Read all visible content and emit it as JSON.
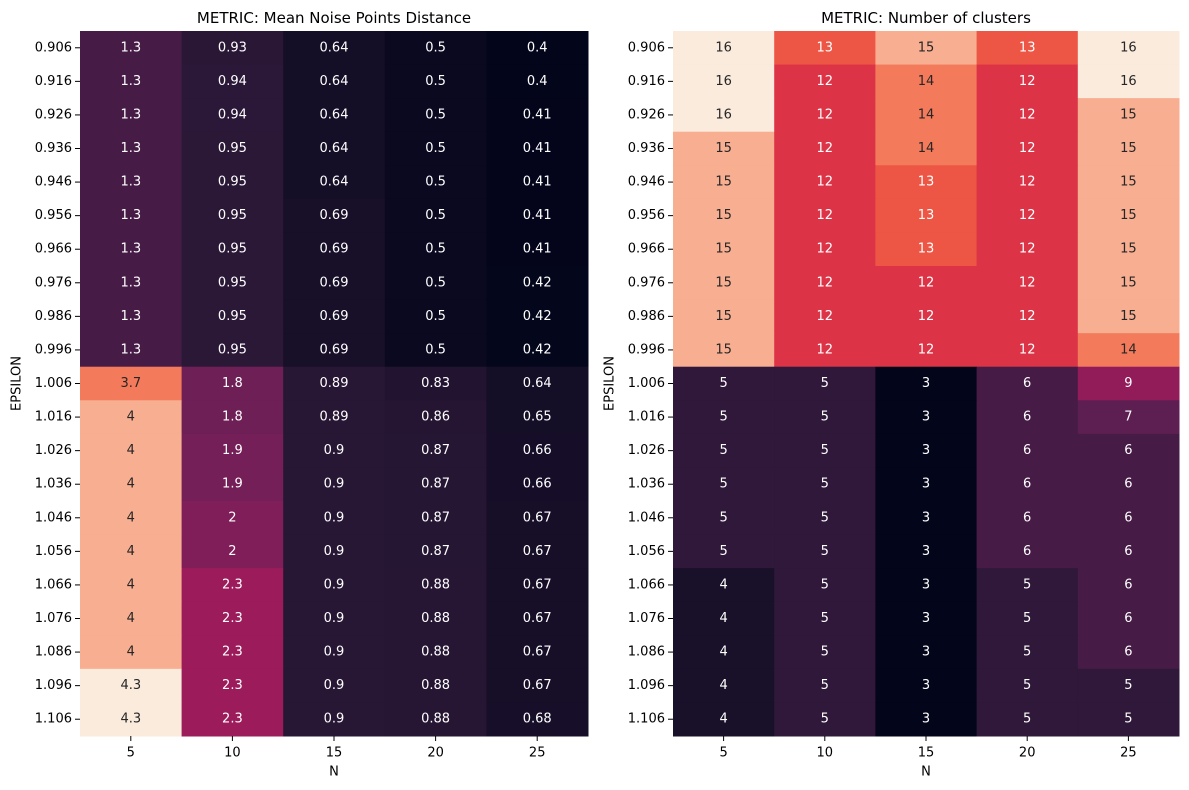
{
  "chart_data": [
    {
      "type": "heatmap",
      "title": "METRIC: Mean Noise Points Distance",
      "xlabel": "N",
      "ylabel": "EPSILON",
      "x": [
        "5",
        "10",
        "15",
        "20",
        "25"
      ],
      "y": [
        "0.906",
        "0.916",
        "0.926",
        "0.936",
        "0.946",
        "0.956",
        "0.966",
        "0.976",
        "0.986",
        "0.996",
        "1.006",
        "1.016",
        "1.026",
        "1.036",
        "1.046",
        "1.056",
        "1.066",
        "1.076",
        "1.086",
        "1.096",
        "1.106"
      ],
      "values": [
        [
          1.3,
          0.93,
          0.64,
          0.5,
          0.4
        ],
        [
          1.3,
          0.94,
          0.64,
          0.5,
          0.4
        ],
        [
          1.3,
          0.94,
          0.64,
          0.5,
          0.41
        ],
        [
          1.3,
          0.95,
          0.64,
          0.5,
          0.41
        ],
        [
          1.3,
          0.95,
          0.64,
          0.5,
          0.41
        ],
        [
          1.3,
          0.95,
          0.69,
          0.5,
          0.41
        ],
        [
          1.3,
          0.95,
          0.69,
          0.5,
          0.41
        ],
        [
          1.3,
          0.95,
          0.69,
          0.5,
          0.42
        ],
        [
          1.3,
          0.95,
          0.69,
          0.5,
          0.42
        ],
        [
          1.3,
          0.95,
          0.69,
          0.5,
          0.42
        ],
        [
          3.7,
          1.8,
          0.89,
          0.83,
          0.64
        ],
        [
          4,
          1.8,
          0.89,
          0.86,
          0.65
        ],
        [
          4,
          1.9,
          0.9,
          0.87,
          0.66
        ],
        [
          4,
          1.9,
          0.9,
          0.87,
          0.66
        ],
        [
          4,
          2,
          0.9,
          0.87,
          0.67
        ],
        [
          4,
          2,
          0.9,
          0.87,
          0.67
        ],
        [
          4,
          2.3,
          0.9,
          0.88,
          0.67
        ],
        [
          4,
          2.3,
          0.9,
          0.88,
          0.67
        ],
        [
          4,
          2.3,
          0.9,
          0.88,
          0.67
        ],
        [
          4.3,
          2.3,
          0.9,
          0.88,
          0.67
        ],
        [
          4.3,
          2.3,
          0.9,
          0.88,
          0.68
        ]
      ],
      "colormap": "rocket",
      "colorbar": false
    },
    {
      "type": "heatmap",
      "title": "METRIC: Number of clusters",
      "xlabel": "N",
      "ylabel": "EPSILON",
      "x": [
        "5",
        "10",
        "15",
        "20",
        "25"
      ],
      "y": [
        "0.906",
        "0.916",
        "0.926",
        "0.936",
        "0.946",
        "0.956",
        "0.966",
        "0.976",
        "0.986",
        "0.996",
        "1.006",
        "1.016",
        "1.026",
        "1.036",
        "1.046",
        "1.056",
        "1.066",
        "1.076",
        "1.086",
        "1.096",
        "1.106"
      ],
      "values": [
        [
          16,
          13,
          15,
          13,
          16
        ],
        [
          16,
          12,
          14,
          12,
          16
        ],
        [
          16,
          12,
          14,
          12,
          15
        ],
        [
          15,
          12,
          14,
          12,
          15
        ],
        [
          15,
          12,
          13,
          12,
          15
        ],
        [
          15,
          12,
          13,
          12,
          15
        ],
        [
          15,
          12,
          13,
          12,
          15
        ],
        [
          15,
          12,
          12,
          12,
          15
        ],
        [
          15,
          12,
          12,
          12,
          15
        ],
        [
          15,
          12,
          12,
          12,
          14
        ],
        [
          5,
          5,
          3,
          6,
          9
        ],
        [
          5,
          5,
          3,
          6,
          7
        ],
        [
          5,
          5,
          3,
          6,
          6
        ],
        [
          5,
          5,
          3,
          6,
          6
        ],
        [
          5,
          5,
          3,
          6,
          6
        ],
        [
          5,
          5,
          3,
          6,
          6
        ],
        [
          4,
          5,
          3,
          5,
          6
        ],
        [
          4,
          5,
          3,
          5,
          6
        ],
        [
          4,
          5,
          3,
          5,
          6
        ],
        [
          4,
          5,
          3,
          5,
          5
        ],
        [
          4,
          5,
          3,
          5,
          5
        ]
      ],
      "colormap": "rocket",
      "colorbar": false
    }
  ]
}
